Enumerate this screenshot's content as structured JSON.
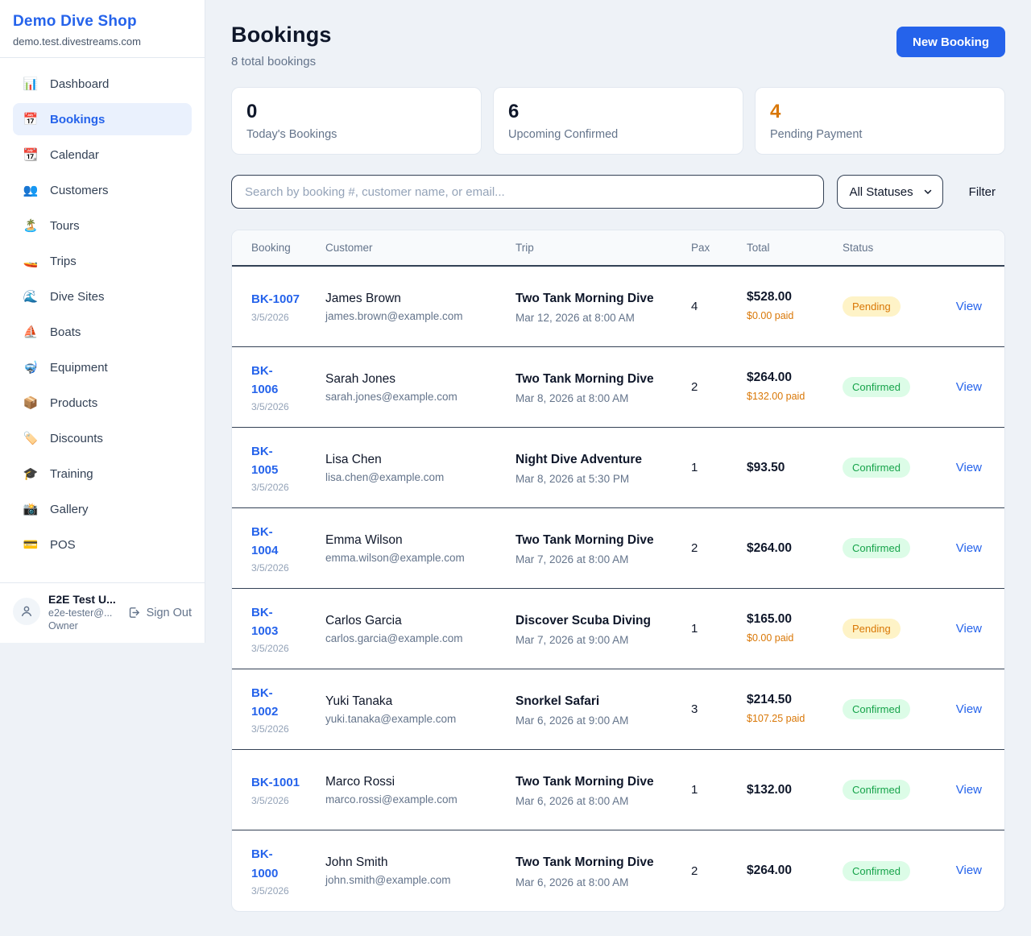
{
  "sidebar": {
    "brand": {
      "name": "Demo Dive Shop",
      "domain": "demo.test.divestreams.com"
    },
    "nav": [
      {
        "label": "Dashboard",
        "icon": "bar-chart-icon",
        "glyph": "📊",
        "active": false
      },
      {
        "label": "Bookings",
        "icon": "calendar-icon",
        "glyph": "📅",
        "active": true
      },
      {
        "label": "Calendar",
        "icon": "tear-off-calendar-icon",
        "glyph": "📆",
        "active": false
      },
      {
        "label": "Customers",
        "icon": "people-icon",
        "glyph": "👥",
        "active": false
      },
      {
        "label": "Tours",
        "icon": "island-icon",
        "glyph": "🏝️",
        "active": false
      },
      {
        "label": "Trips",
        "icon": "speedboat-icon",
        "glyph": "🚤",
        "active": false
      },
      {
        "label": "Dive Sites",
        "icon": "wave-icon",
        "glyph": "🌊",
        "active": false
      },
      {
        "label": "Boats",
        "icon": "sailboat-icon",
        "glyph": "⛵",
        "active": false
      },
      {
        "label": "Equipment",
        "icon": "diving-mask-icon",
        "glyph": "🤿",
        "active": false
      },
      {
        "label": "Products",
        "icon": "package-icon",
        "glyph": "📦",
        "active": false
      },
      {
        "label": "Discounts",
        "icon": "label-tag-icon",
        "glyph": "🏷️",
        "active": false
      },
      {
        "label": "Training",
        "icon": "graduation-cap-icon",
        "glyph": "🎓",
        "active": false
      },
      {
        "label": "Gallery",
        "icon": "camera-icon",
        "glyph": "📸",
        "active": false
      },
      {
        "label": "POS",
        "icon": "credit-card-icon",
        "glyph": "💳",
        "active": false
      }
    ],
    "user": {
      "name": "E2E Test U...",
      "email": "e2e-tester@...",
      "role": "Owner",
      "sign_out_label": "Sign Out"
    }
  },
  "header": {
    "title": "Bookings",
    "subtitle": "8 total bookings",
    "new_booking_label": "New Booking"
  },
  "stats": [
    {
      "value": "0",
      "label": "Today's Bookings",
      "color": "#0f172a"
    },
    {
      "value": "6",
      "label": "Upcoming Confirmed",
      "color": "#0f172a"
    },
    {
      "value": "4",
      "label": "Pending Payment",
      "color": "#d97706"
    }
  ],
  "filters": {
    "search_placeholder": "Search by booking #, customer name, or email...",
    "status_selected": "All Statuses",
    "filter_label": "Filter"
  },
  "table": {
    "columns": [
      "Booking",
      "Customer",
      "Trip",
      "Pax",
      "Total",
      "Status"
    ],
    "view_label": "View",
    "rows": [
      {
        "id_lines": [
          "BK-1007"
        ],
        "date": "3/5/2026",
        "customer": "James Brown",
        "email": "james.brown@example.com",
        "trip": "Two Tank Morning Dive",
        "trip_datetime": "Mar 12, 2026 at 8:00 AM",
        "pax": "4",
        "total": "$528.00",
        "paid": "$0.00 paid",
        "status": "Pending"
      },
      {
        "id_lines": [
          "BK-",
          "1006"
        ],
        "date": "3/5/2026",
        "customer": "Sarah Jones",
        "email": "sarah.jones@example.com",
        "trip": "Two Tank Morning Dive",
        "trip_datetime": "Mar 8, 2026 at 8:00 AM",
        "pax": "2",
        "total": "$264.00",
        "paid": "$132.00 paid",
        "status": "Confirmed"
      },
      {
        "id_lines": [
          "BK-",
          "1005"
        ],
        "date": "3/5/2026",
        "customer": "Lisa Chen",
        "email": "lisa.chen@example.com",
        "trip": "Night Dive Adventure",
        "trip_datetime": "Mar 8, 2026 at 5:30 PM",
        "pax": "1",
        "total": "$93.50",
        "paid": "",
        "status": "Confirmed"
      },
      {
        "id_lines": [
          "BK-",
          "1004"
        ],
        "date": "3/5/2026",
        "customer": "Emma Wilson",
        "email": "emma.wilson@example.com",
        "trip": "Two Tank Morning Dive",
        "trip_datetime": "Mar 7, 2026 at 8:00 AM",
        "pax": "2",
        "total": "$264.00",
        "paid": "",
        "status": "Confirmed"
      },
      {
        "id_lines": [
          "BK-",
          "1003"
        ],
        "date": "3/5/2026",
        "customer": "Carlos Garcia",
        "email": "carlos.garcia@example.com",
        "trip": "Discover Scuba Diving",
        "trip_datetime": "Mar 7, 2026 at 9:00 AM",
        "pax": "1",
        "total": "$165.00",
        "paid": "$0.00 paid",
        "status": "Pending"
      },
      {
        "id_lines": [
          "BK-",
          "1002"
        ],
        "date": "3/5/2026",
        "customer": "Yuki Tanaka",
        "email": "yuki.tanaka@example.com",
        "trip": "Snorkel Safari",
        "trip_datetime": "Mar 6, 2026 at 9:00 AM",
        "pax": "3",
        "total": "$214.50",
        "paid": "$107.25 paid",
        "status": "Confirmed"
      },
      {
        "id_lines": [
          "BK-1001"
        ],
        "date": "3/5/2026",
        "customer": "Marco Rossi",
        "email": "marco.rossi@example.com",
        "trip": "Two Tank Morning Dive",
        "trip_datetime": "Mar 6, 2026 at 8:00 AM",
        "pax": "1",
        "total": "$132.00",
        "paid": "",
        "status": "Confirmed"
      },
      {
        "id_lines": [
          "BK-",
          "1000"
        ],
        "date": "3/5/2026",
        "customer": "John Smith",
        "email": "john.smith@example.com",
        "trip": "Two Tank Morning Dive",
        "trip_datetime": "Mar 6, 2026 at 8:00 AM",
        "pax": "2",
        "total": "$264.00",
        "paid": "",
        "status": "Confirmed"
      }
    ]
  },
  "colors": {
    "accent_blue": "#2563eb",
    "accent_orange": "#d97706",
    "confirmed_green": "#16a34a",
    "pending_badge_bg": "#fef3c7",
    "confirmed_badge_bg": "#dcfce7",
    "page_bg": "#eef2f7"
  }
}
